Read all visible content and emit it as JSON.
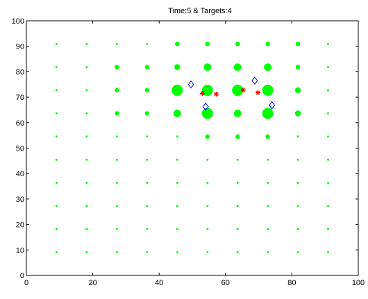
{
  "chart_data": {
    "type": "scatter",
    "title": "Time:5 & Targets:4",
    "xlabel": "",
    "ylabel": "",
    "xlim": [
      0,
      100
    ],
    "ylim": [
      0,
      100
    ],
    "xticks": [
      0,
      20,
      40,
      60,
      80,
      100
    ],
    "yticks": [
      0,
      10,
      20,
      30,
      40,
      50,
      60,
      70,
      80,
      90,
      100
    ],
    "grid": false,
    "legend": "none",
    "grid_points": {
      "name": "",
      "color": "#00ff00",
      "marker": "filled-circle",
      "x_values": [
        9.09,
        18.18,
        27.27,
        36.36,
        45.45,
        54.55,
        63.64,
        72.73,
        81.82,
        90.91
      ],
      "y_values": [
        9.09,
        18.18,
        27.27,
        36.36,
        45.45,
        54.55,
        63.64,
        72.73,
        81.82,
        90.91
      ],
      "size_grid": [
        [
          1,
          1,
          1,
          1,
          1,
          1,
          1,
          1,
          1,
          1
        ],
        [
          1,
          1,
          1,
          1,
          1,
          1,
          1,
          1,
          1,
          1
        ],
        [
          1,
          1,
          1,
          1,
          1,
          1,
          1,
          1,
          1,
          1
        ],
        [
          1,
          1,
          1,
          1,
          1,
          1,
          1,
          1,
          1,
          1
        ],
        [
          1,
          1,
          1,
          1,
          1,
          1,
          1,
          1,
          1,
          1
        ],
        [
          1,
          1,
          1,
          1,
          1,
          2,
          2,
          2,
          1,
          1
        ],
        [
          1,
          1,
          2,
          2,
          4,
          6,
          4,
          6,
          3,
          1
        ],
        [
          1,
          1,
          2,
          2,
          6,
          6,
          6,
          6,
          3,
          1
        ],
        [
          1,
          1,
          2,
          2,
          3,
          4,
          4,
          4,
          2,
          1
        ],
        [
          1,
          1,
          1,
          1,
          2,
          2,
          2,
          2,
          2,
          1
        ]
      ]
    },
    "series": [
      {
        "name": "",
        "color": "#ff0000",
        "marker": "asterisk",
        "points": [
          [
            53,
            71.5
          ],
          [
            57.2,
            71.2
          ],
          [
            65.3,
            72.8
          ],
          [
            69.8,
            71.8
          ]
        ]
      },
      {
        "name": "",
        "color": "#0000ff",
        "marker": "diamond",
        "points": [
          [
            49.6,
            75
          ],
          [
            54,
            66.3
          ],
          [
            68.8,
            76.5
          ],
          [
            74,
            66.8
          ]
        ]
      }
    ]
  }
}
